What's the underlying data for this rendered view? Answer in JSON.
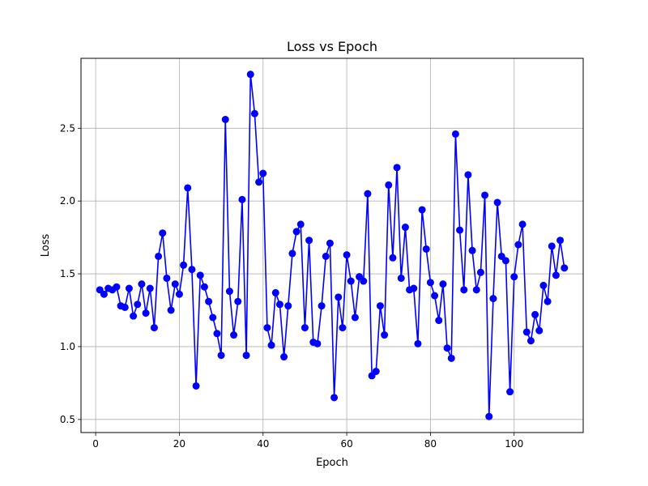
{
  "chart_data": {
    "type": "line",
    "title": "Loss vs Epoch",
    "xlabel": "Epoch",
    "ylabel": "Loss",
    "xlim": [
      -3.5,
      116.5
    ],
    "ylim": [
      0.41,
      2.98
    ],
    "grid": true,
    "x_ticks": [
      0,
      20,
      40,
      60,
      80,
      100
    ],
    "x_tick_labels": [
      "0",
      "20",
      "40",
      "60",
      "80",
      "100"
    ],
    "y_ticks": [
      0.5,
      1.0,
      1.5,
      2.0,
      2.5
    ],
    "y_tick_labels": [
      "0.5",
      "1.0",
      "1.5",
      "2.0",
      "2.5"
    ],
    "series": [
      {
        "color": "#0000ff",
        "marker": "circle",
        "x": [
          1,
          2,
          3,
          4,
          5,
          6,
          7,
          8,
          9,
          10,
          11,
          12,
          13,
          14,
          15,
          16,
          17,
          18,
          19,
          20,
          21,
          22,
          23,
          24,
          25,
          26,
          27,
          28,
          29,
          30,
          31,
          32,
          33,
          34,
          35,
          36,
          37,
          38,
          39,
          40,
          41,
          42,
          43,
          44,
          45,
          46,
          47,
          48,
          49,
          50,
          51,
          52,
          53,
          54,
          55,
          56,
          57,
          58,
          59,
          60,
          61,
          62,
          63,
          64,
          65,
          66,
          67,
          68,
          69,
          70,
          71,
          72,
          73,
          74,
          75,
          76,
          77,
          78,
          79,
          80,
          81,
          82,
          83,
          84,
          85,
          86,
          87,
          88,
          89,
          90,
          91,
          92,
          93,
          94,
          95,
          96,
          97,
          98,
          99,
          100,
          101,
          102,
          103,
          104,
          105,
          106,
          107,
          108,
          109,
          110,
          111,
          112
        ],
        "y": [
          1.39,
          1.36,
          1.4,
          1.39,
          1.41,
          1.28,
          1.27,
          1.4,
          1.21,
          1.29,
          1.43,
          1.23,
          1.4,
          1.13,
          1.62,
          1.78,
          1.47,
          1.25,
          1.43,
          1.36,
          1.56,
          2.09,
          1.53,
          0.73,
          1.49,
          1.41,
          1.31,
          1.2,
          1.09,
          0.94,
          2.56,
          1.38,
          1.08,
          1.31,
          2.01,
          0.94,
          2.87,
          2.6,
          2.13,
          2.19,
          1.13,
          1.01,
          1.37,
          1.29,
          0.93,
          1.28,
          1.64,
          1.79,
          1.84,
          1.13,
          1.73,
          1.03,
          1.02,
          1.28,
          1.62,
          1.71,
          0.65,
          1.34,
          1.13,
          1.63,
          1.45,
          1.2,
          1.48,
          1.45,
          2.05,
          0.8,
          0.83,
          1.28,
          1.08,
          2.11,
          1.61,
          2.23,
          1.47,
          1.82,
          1.39,
          1.4,
          1.02,
          1.94,
          1.67,
          1.44,
          1.35,
          1.18,
          1.43,
          0.99,
          0.92,
          2.46,
          1.8,
          1.39,
          2.18,
          1.66,
          1.39,
          1.51,
          2.04,
          0.52,
          1.33,
          1.99,
          1.62,
          1.59,
          0.69,
          1.48,
          1.7,
          1.84,
          1.1,
          1.04,
          1.22,
          1.11,
          1.42,
          1.31,
          1.69,
          1.49,
          1.73,
          1.54
        ]
      }
    ]
  }
}
